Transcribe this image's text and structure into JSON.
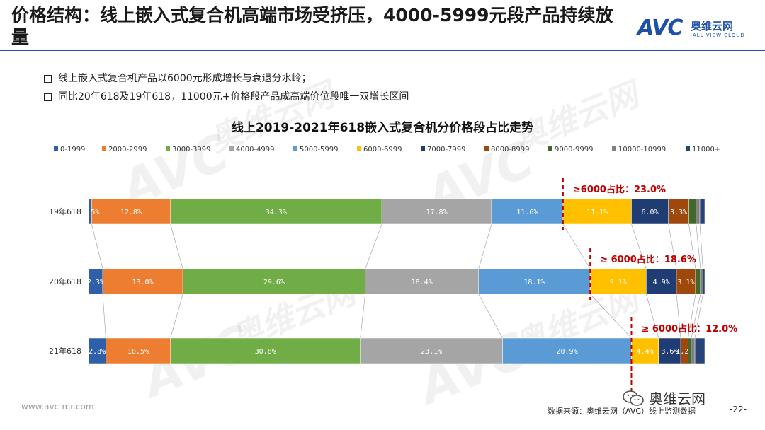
{
  "header": {
    "title": "价格结构：线上嵌入式复合机高端市场受挤压，4000-5999元段产品持续放量",
    "logo_mark": "AVC",
    "logo_cn": "奥维云网",
    "logo_en": "ALL VIEW CLOUD",
    "accent_color": "#1f4fa8"
  },
  "bullets": [
    "线上嵌入式复合机产品以6000元形成增长与衰退分水岭；",
    "同比20年618及19年618，11000元+价格段产品成高端价位段唯一双增长区间"
  ],
  "chart_data": {
    "type": "bar",
    "orientation": "horizontal",
    "stacked": "percent",
    "title": "线上2019-2021年618嵌入式复合机分价格段占比走势",
    "legend_position": "top",
    "categories": [
      "19年618",
      "20年618",
      "21年618"
    ],
    "series": [
      {
        "name": "0-1999",
        "color": "#2e5fa8",
        "values": [
          0.5,
          2.3,
          2.8
        ],
        "labels": [
          "",
          "2.3%",
          "2.8%"
        ]
      },
      {
        "name": "2000-2999",
        "color": "#ed7d31",
        "values": [
          12.8,
          13.0,
          10.5
        ],
        "labels": [
          "12.8%",
          "13.0%",
          "10.5%"
        ]
      },
      {
        "name": "3000-3999",
        "color": "#70ad47",
        "values": [
          34.3,
          29.6,
          30.8
        ],
        "labels": [
          "34.3%",
          "29.6%",
          "30.8%"
        ]
      },
      {
        "name": "4000-4999",
        "color": "#a5a5a5",
        "values": [
          17.8,
          18.4,
          23.1
        ],
        "labels": [
          "17.8%",
          "18.4%",
          "23.1%"
        ]
      },
      {
        "name": "5000-5999",
        "color": "#5b9bd5",
        "values": [
          11.6,
          18.1,
          20.9
        ],
        "labels": [
          "11.6%",
          "18.1%",
          "20.9%"
        ]
      },
      {
        "name": "6000-6999",
        "color": "#ffc000",
        "values": [
          11.1,
          9.1,
          4.4
        ],
        "labels": [
          "11.1%",
          "9.1%",
          "4.4%"
        ]
      },
      {
        "name": "7000-7999",
        "color": "#1f3c73",
        "values": [
          6.0,
          4.9,
          3.6
        ],
        "labels": [
          "6.0%",
          "4.9%",
          "3.6%"
        ]
      },
      {
        "name": "8000-8999",
        "color": "#9e480e",
        "values": [
          3.3,
          3.1,
          1.2
        ],
        "labels": [
          "3.3%",
          "3.1%",
          "1.2%"
        ]
      },
      {
        "name": "9000-9999",
        "color": "#43682b",
        "values": [
          1.2,
          0.8,
          0.5
        ],
        "labels": [
          "",
          "",
          ""
        ]
      },
      {
        "name": "10000-10999",
        "color": "#7f7f7f",
        "values": [
          0.6,
          0.4,
          0.6
        ],
        "labels": [
          "",
          "",
          ""
        ]
      },
      {
        "name": "11000+",
        "color": "#264478",
        "values": [
          0.8,
          0.3,
          1.6
        ],
        "labels": [
          "",
          "",
          ""
        ]
      }
    ],
    "extra_label": {
      "category": "19年618",
      "text": "5%"
    },
    "annotations": [
      {
        "category": "19年618",
        "text": "≥6000占比：23.0%"
      },
      {
        "category": "20年618",
        "text": "≥ 6000占比：18.6%"
      },
      {
        "category": "21年618",
        "text": "≥ 6000占比：12.0%"
      }
    ],
    "annotation_color": "#c00000",
    "connector_lines": true,
    "xlim": [
      0,
      100
    ]
  },
  "footer": {
    "url": "www.avc-mr.com",
    "wechat": "奥维云网",
    "source": "数据来源：奥维云网（AVC）线上监测数据",
    "page": "-22-"
  },
  "watermarks": [
    "AVC",
    "奥维云网",
    "ALL VIEW CLOUD"
  ]
}
